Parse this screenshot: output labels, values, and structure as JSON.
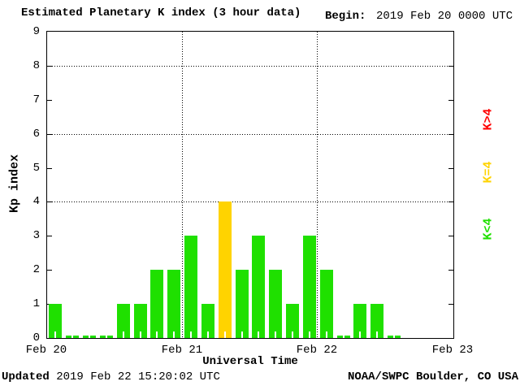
{
  "header": {
    "title": "Estimated Planetary K index (3 hour data)",
    "begin_label": "Begin:",
    "begin_value": "2019 Feb 20 0000 UTC"
  },
  "footer": {
    "updated_label": "Updated",
    "updated_value": "2019 Feb 22 15:20:02 UTC",
    "source": "NOAA/SWPC Boulder, CO USA"
  },
  "chart_data": {
    "type": "bar",
    "title": "Estimated Planetary K index (3 hour data)",
    "xlabel": "Universal Time",
    "ylabel": "Kp index",
    "ylim": [
      0,
      9
    ],
    "y_ticks": [
      0,
      1,
      2,
      3,
      4,
      5,
      6,
      7,
      8,
      9
    ],
    "dotted_hgrid_at_kp": [
      4,
      6,
      8
    ],
    "dotted_vgrid_at_day_boundaries": true,
    "bars_per_day": 8,
    "interval_hours": 3,
    "days": [
      {
        "label": "Feb 20",
        "kp": [
          1,
          0,
          0,
          0,
          1,
          1,
          2,
          2
        ]
      },
      {
        "label": "Feb 21",
        "kp": [
          3,
          1,
          4,
          2,
          3,
          2,
          1,
          3
        ]
      },
      {
        "label": "Feb 22",
        "kp": [
          2,
          0,
          1,
          1,
          0
        ]
      },
      {
        "label": "Feb 23",
        "kp": []
      }
    ],
    "color_rule": "green if K<4, yellow if K=4, red if K>4",
    "colors": {
      "low": "#1fe000",
      "mid": "#ffd300",
      "high": "#ff0000",
      "axis": "#000000",
      "background": "#ffffff"
    },
    "legend": [
      {
        "label": "K>4",
        "color": "#ff0000"
      },
      {
        "label": "K=4",
        "color": "#ffd300"
      },
      {
        "label": "K<4",
        "color": "#1fe000"
      }
    ],
    "legend_position": "right-margin-rotated"
  }
}
